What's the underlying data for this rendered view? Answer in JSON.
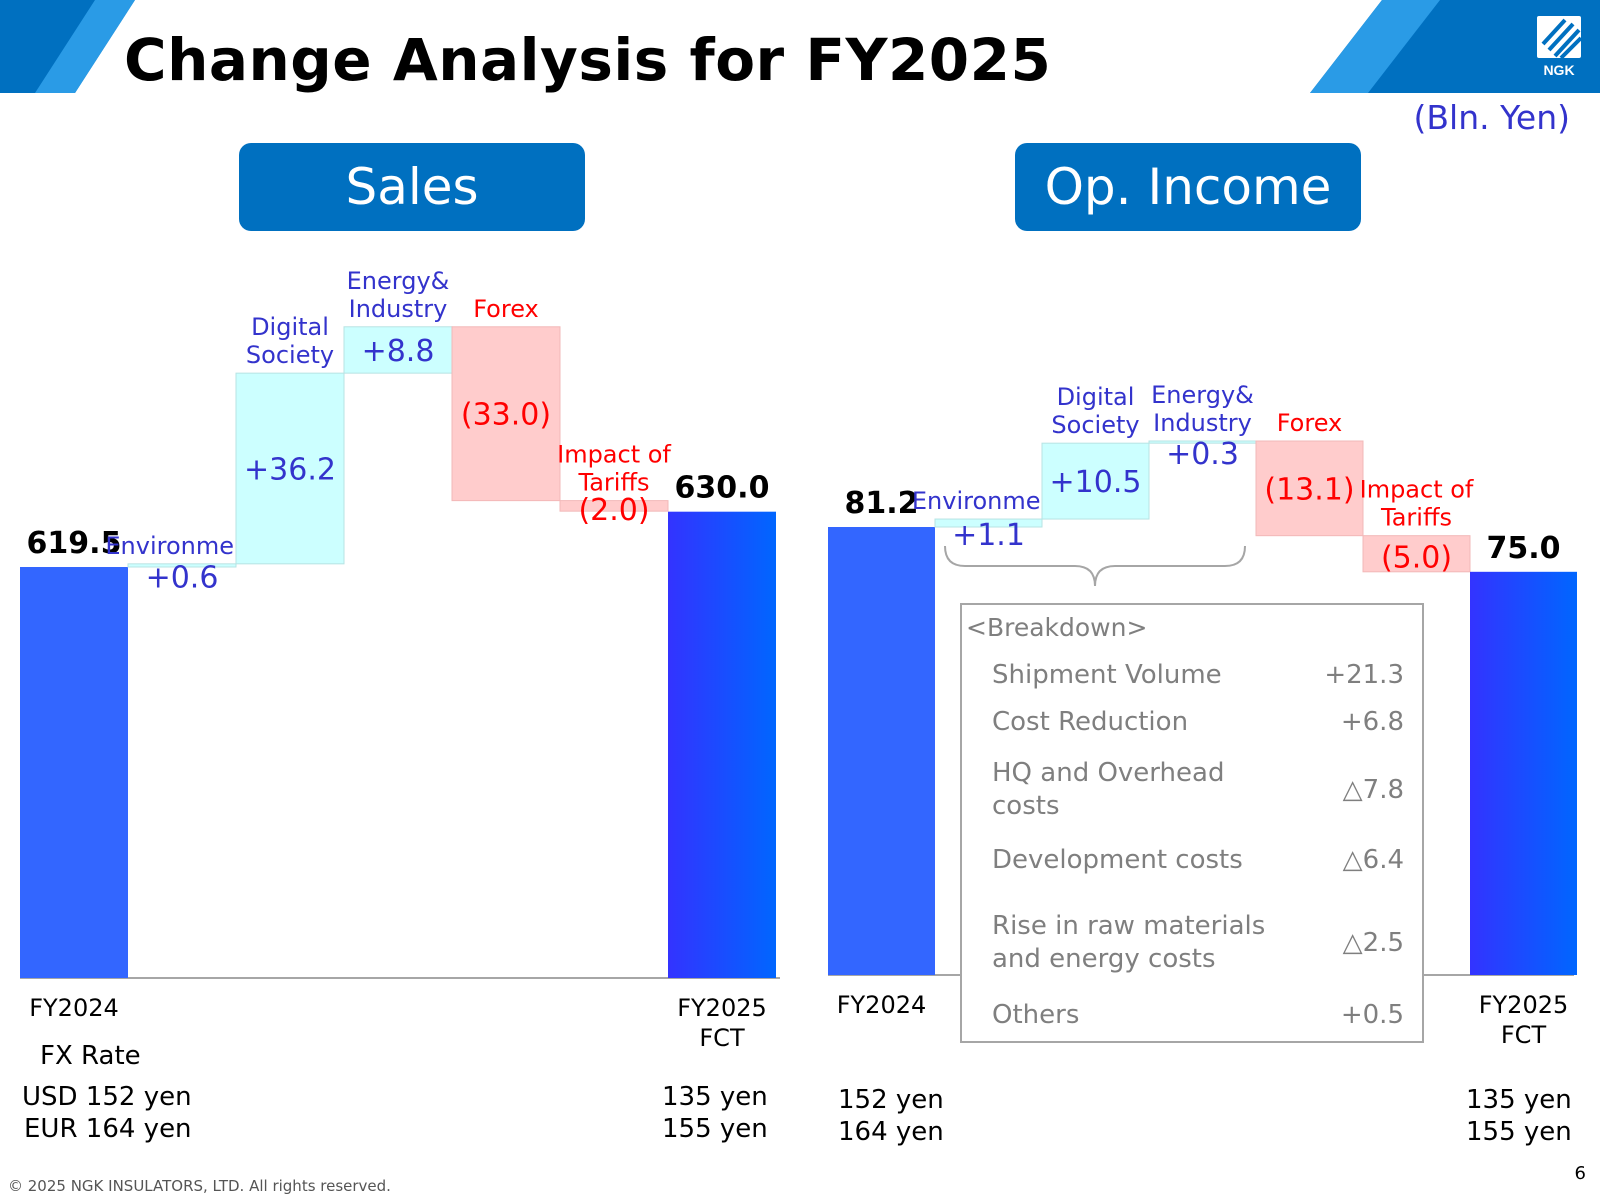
{
  "title": "Change Analysis for FY2025",
  "unit": "(Bln. Yen)",
  "logo_text": "NGK",
  "colors": {
    "brand": "#0070c0",
    "bar_total": "#3366ff",
    "pos_fill": "#ccffff",
    "neg_fill": "#ffcccc",
    "pos_text": "#3333cc",
    "neg_text": "#ff0000"
  },
  "sections": {
    "sales": "Sales",
    "op": "Op. Income"
  },
  "chart_data": [
    {
      "type": "bar",
      "subtype": "waterfall",
      "title": "Sales",
      "start": {
        "label": "FY2024",
        "value": 619.5,
        "value_label": "619.5"
      },
      "end": {
        "label": [
          "FY2025",
          "FCT"
        ],
        "value": 630.0,
        "value_label": "630.0"
      },
      "steps": [
        {
          "label": [
            "Environment"
          ],
          "value": 0.6,
          "value_label": "+0.6"
        },
        {
          "label": [
            "Digital",
            "Society"
          ],
          "value": 36.2,
          "value_label": "+36.2"
        },
        {
          "label": [
            "Energy&",
            "Industry"
          ],
          "value": 8.8,
          "value_label": "+8.8"
        },
        {
          "label": [
            "Forex"
          ],
          "value": -33.0,
          "value_label": "(33.0)"
        },
        {
          "label": [
            "Impact of",
            "Tariffs"
          ],
          "value": -2.0,
          "value_label": "(2.0)"
        }
      ]
    },
    {
      "type": "bar",
      "subtype": "waterfall",
      "title": "Op. Income",
      "start": {
        "label": "FY2024",
        "value": 81.2,
        "value_label": "81.2"
      },
      "end": {
        "label": [
          "FY2025",
          "FCT"
        ],
        "value": 75.0,
        "value_label": "75.0"
      },
      "steps": [
        {
          "label": [
            "Environment"
          ],
          "value": 1.1,
          "value_label": "+1.1"
        },
        {
          "label": [
            "Digital",
            "Society"
          ],
          "value": 10.5,
          "value_label": "+10.5"
        },
        {
          "label": [
            "Energy&",
            "Industry"
          ],
          "value": 0.3,
          "value_label": "+0.3"
        },
        {
          "label": [
            "Forex"
          ],
          "value": -13.1,
          "value_label": "(13.1)"
        },
        {
          "label": [
            "Impact of",
            "Tariffs"
          ],
          "value": -5.0,
          "value_label": "(5.0)"
        }
      ]
    }
  ],
  "breakdown": {
    "title": "<Breakdown>",
    "rows": [
      {
        "label": "Shipment Volume",
        "value": "+21.3"
      },
      {
        "label": "Cost Reduction",
        "value": "+6.8"
      },
      {
        "label": "HQ and Overhead costs",
        "value": "△7.8"
      },
      {
        "label": "Development costs",
        "value": "△6.4"
      },
      {
        "label": "Rise in raw materials and energy costs",
        "value": "△2.5"
      },
      {
        "label": "Others",
        "value": "+0.5"
      }
    ]
  },
  "fx": {
    "label": "FX Rate",
    "sales_left": {
      "usd": "USD 152 yen",
      "eur": "EUR 164 yen"
    },
    "sales_right": {
      "usd": "135 yen",
      "eur": "155 yen"
    },
    "op_left": {
      "usd": "152 yen",
      "eur": "164 yen"
    },
    "op_right": {
      "usd": "135 yen",
      "eur": "155 yen"
    }
  },
  "copyright": "© 2025 NGK INSULATORS, LTD. All rights reserved.",
  "page_number": "6"
}
